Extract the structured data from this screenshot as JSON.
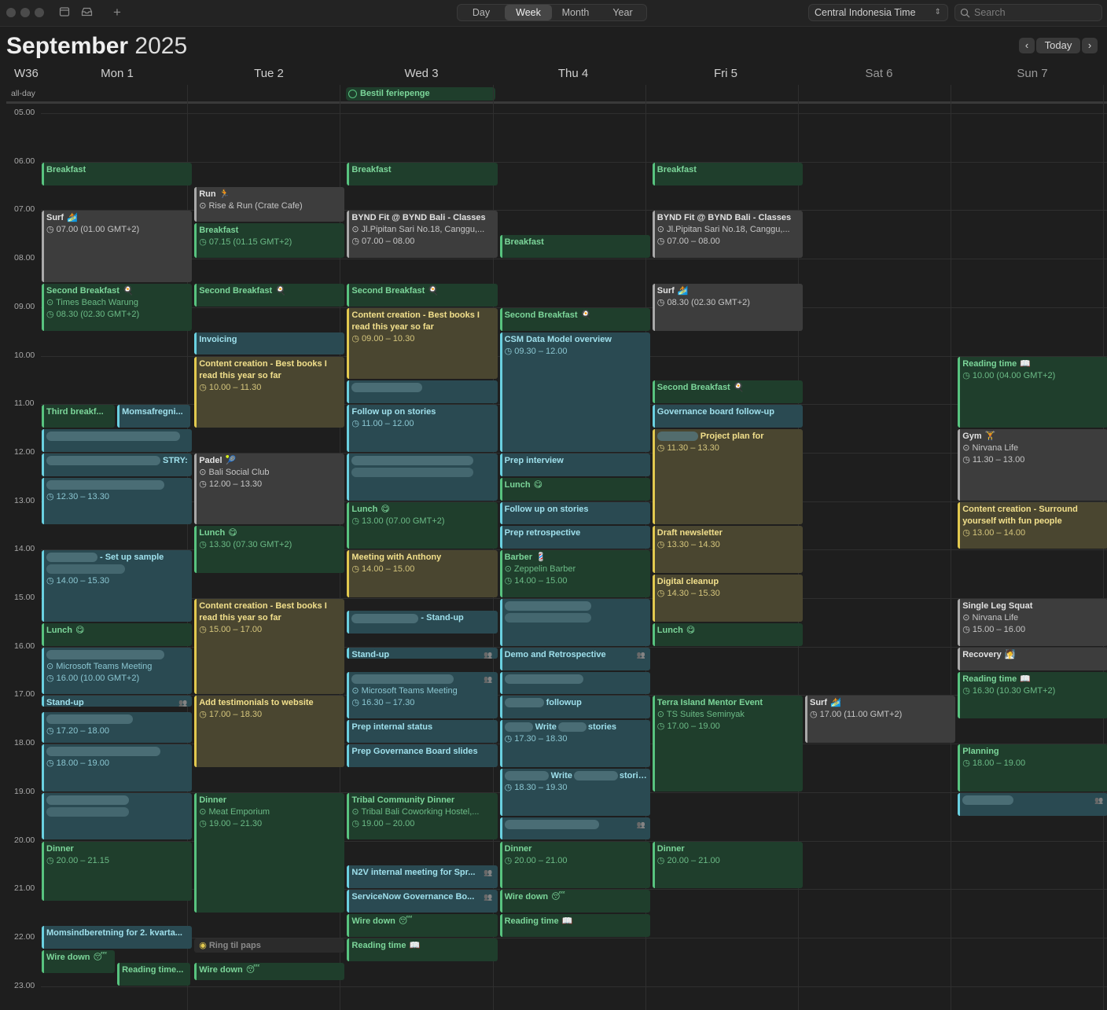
{
  "toolbar": {
    "views": [
      "Day",
      "Week",
      "Month",
      "Year"
    ],
    "active_view": "Week",
    "timezone": "Central Indonesia Time",
    "search_placeholder": "Search",
    "today_label": "Today"
  },
  "header": {
    "month": "September",
    "year": "2025",
    "week": "W36"
  },
  "days": [
    "Mon 1",
    "Tue 2",
    "Wed 3",
    "Thu 4",
    "Fri 5",
    "Sat 6",
    "Sun 7"
  ],
  "allday_label": "all-day",
  "allday_events": [
    {
      "day": 2,
      "title": "Bestil feriepenge"
    }
  ],
  "hours": [
    "05.00",
    "06.00",
    "07.00",
    "08.00",
    "09.00",
    "10.00",
    "11.00",
    "12.00",
    "13.00",
    "14.00",
    "15.00",
    "16.00",
    "17.00",
    "18.00",
    "19.00",
    "20.00",
    "21.00",
    "22.00",
    "23.00"
  ],
  "events": [
    {
      "day": 0,
      "start": 6.0,
      "end": 6.5,
      "color": "green",
      "title": "Breakfast"
    },
    {
      "day": 0,
      "start": 7.0,
      "end": 8.5,
      "color": "gray",
      "title": "Surf",
      "icon": "🏄",
      "lines": [
        "◷ 07.00 (01.00 GMT+2)"
      ]
    },
    {
      "day": 0,
      "start": 8.5,
      "end": 9.5,
      "color": "green",
      "title": "Second Breakfast",
      "icon": "🍳",
      "lines": [
        "⊙ Times Beach Warung",
        "◷ 08.30 (02.30 GMT+2)"
      ]
    },
    {
      "day": 0,
      "start": 11.0,
      "end": 11.5,
      "color": "green",
      "title": "Third breakf...",
      "sub": "L"
    },
    {
      "day": 0,
      "start": 11.0,
      "end": 11.5,
      "color": "teal",
      "title": "Momsafregni...",
      "sub": "R"
    },
    {
      "day": 0,
      "start": 11.5,
      "end": 12.0,
      "color": "teal",
      "title": "",
      "blur": [
        0,
        170
      ]
    },
    {
      "day": 0,
      "start": 12.0,
      "end": 12.5,
      "color": "teal",
      "title": "STRY:",
      "blur": [
        30,
        145
      ]
    },
    {
      "day": 0,
      "start": 12.5,
      "end": 13.5,
      "color": "teal",
      "title": "",
      "blur": [
        0,
        150
      ],
      "lines": [
        "◷ 12.30 – 13.30"
      ]
    },
    {
      "day": 0,
      "start": 14.0,
      "end": 15.5,
      "color": "teal",
      "title": "- Set up sample",
      "blur": [
        0,
        65
      ],
      "lines": [
        "",
        "◷ 14.00 – 15.30"
      ]
    },
    {
      "day": 0,
      "start": 15.5,
      "end": 16.0,
      "color": "green",
      "title": "Lunch",
      "icon": "😋"
    },
    {
      "day": 0,
      "start": 16.0,
      "end": 17.0,
      "color": "teal",
      "title": "",
      "blur": [
        0,
        150
      ],
      "lines": [
        "⊙ Microsoft Teams Meeting",
        "◷ 16.00 (10.00 GMT+2)"
      ]
    },
    {
      "day": 0,
      "start": 17.0,
      "end": 17.25,
      "color": "teal",
      "title": "Stand-up",
      "person": true
    },
    {
      "day": 0,
      "start": 17.33,
      "end": 18.0,
      "color": "teal",
      "title": "",
      "blur": [
        0,
        110
      ],
      "lines": [
        "◷ 17.20 – 18.00"
      ]
    },
    {
      "day": 0,
      "start": 18.0,
      "end": 19.0,
      "color": "teal",
      "title": "",
      "blur": [
        0,
        145
      ],
      "lines": [
        "◷ 18.00 – 19.00"
      ]
    },
    {
      "day": 0,
      "start": 19.0,
      "end": 20.0,
      "color": "teal",
      "title": "",
      "blur": [
        0,
        105
      ],
      "clip": true,
      "lines": [
        ""
      ]
    },
    {
      "day": 0,
      "start": 20.0,
      "end": 21.25,
      "color": "green",
      "title": "Dinner",
      "lines": [
        "◷ 20.00 – 21.15"
      ]
    },
    {
      "day": 0,
      "start": 21.75,
      "end": 22.25,
      "color": "teal",
      "title": "Momsindberetning for 2. kvarta..."
    },
    {
      "day": 0,
      "start": 22.25,
      "end": 22.75,
      "color": "green",
      "title": "Wire down",
      "icon": "😴",
      "sub": "L"
    },
    {
      "day": 0,
      "start": 22.5,
      "end": 23.0,
      "color": "green",
      "title": "Reading time...",
      "sub": "R"
    },
    {
      "day": 1,
      "start": 6.5,
      "end": 7.25,
      "color": "gray",
      "title": "Run",
      "icon": "🏃",
      "lines": [
        "⊙ Rise & Run (Crate Cafe)"
      ]
    },
    {
      "day": 1,
      "start": 7.25,
      "end": 8.0,
      "color": "green",
      "title": "Breakfast",
      "lines": [
        "◷ 07.15 (01.15 GMT+2)"
      ]
    },
    {
      "day": 1,
      "start": 8.5,
      "end": 9.0,
      "color": "green",
      "title": "Second Breakfast",
      "icon": "🍳"
    },
    {
      "day": 1,
      "start": 9.5,
      "end": 10.0,
      "color": "teal",
      "title": "Invoicing"
    },
    {
      "day": 1,
      "start": 10.0,
      "end": 11.5,
      "color": "yellow",
      "title": "Content creation - Best books I",
      "lines": [
        "read this year so far",
        "◷ 10.00 – 11.30"
      ],
      "bold2": true
    },
    {
      "day": 1,
      "start": 12.0,
      "end": 13.5,
      "color": "gray",
      "title": "Padel",
      "icon": "🎾",
      "lines": [
        "⊙ Bali Social Club",
        "◷ 12.00 – 13.30"
      ]
    },
    {
      "day": 1,
      "start": 13.5,
      "end": 14.5,
      "color": "green",
      "title": "Lunch",
      "icon": "😋",
      "lines": [
        "◷ 13.30 (07.30 GMT+2)"
      ]
    },
    {
      "day": 1,
      "start": 15.0,
      "end": 17.0,
      "color": "yellow",
      "title": "Content creation - Best books I",
      "lines": [
        "read this year so far",
        "◷ 15.00 – 17.00"
      ],
      "bold2": true
    },
    {
      "day": 1,
      "start": 17.0,
      "end": 18.5,
      "color": "yellow",
      "title": "Add testimonials to website",
      "lines": [
        "◷ 17.00 – 18.30"
      ]
    },
    {
      "day": 1,
      "start": 19.0,
      "end": 21.5,
      "color": "green",
      "title": "Dinner",
      "lines": [
        "⊙ Meat Emporium",
        "◷ 19.00 – 21.30"
      ]
    },
    {
      "day": 1,
      "start": 22.0,
      "end": 22.33,
      "color": "dim",
      "title": "Ring til paps",
      "circle": true
    },
    {
      "day": 1,
      "start": 22.5,
      "end": 22.9,
      "color": "green",
      "title": "Wire down",
      "icon": "😴"
    },
    {
      "day": 2,
      "start": 6.0,
      "end": 6.5,
      "color": "green",
      "title": "Breakfast"
    },
    {
      "day": 2,
      "start": 7.0,
      "end": 8.0,
      "color": "gray",
      "title": "BYND Fit @ BYND Bali - Classes",
      "lines": [
        "⊙ Jl.Pipitan Sari No.18, Canggu,...",
        "◷ 07.00 – 08.00"
      ]
    },
    {
      "day": 2,
      "start": 8.5,
      "end": 9.0,
      "color": "green",
      "title": "Second Breakfast",
      "icon": "🍳"
    },
    {
      "day": 2,
      "start": 9.0,
      "end": 10.5,
      "color": "yellow",
      "title": "Content creation - Best books I",
      "lines": [
        "read this year so far",
        "◷ 09.00 – 10.30"
      ],
      "bold2": true
    },
    {
      "day": 2,
      "start": 10.5,
      "end": 11.0,
      "color": "teal",
      "title": "",
      "blur": [
        0,
        90
      ]
    },
    {
      "day": 2,
      "start": 11.0,
      "end": 12.0,
      "color": "teal",
      "title": "Follow up on stories",
      "lines": [
        "◷ 11.00 – 12.00"
      ]
    },
    {
      "day": 2,
      "start": 12.0,
      "end": 13.0,
      "color": "teal",
      "title": "",
      "blur": [
        0,
        155
      ],
      "lines": [
        ""
      ]
    },
    {
      "day": 2,
      "start": 13.0,
      "end": 14.0,
      "color": "green",
      "title": "Lunch",
      "icon": "😋",
      "lines": [
        "◷ 13.00 (07.00 GMT+2)"
      ]
    },
    {
      "day": 2,
      "start": 14.0,
      "end": 15.0,
      "color": "yellow",
      "title": "Meeting with Anthony",
      "lines": [
        "◷ 14.00 – 15.00"
      ]
    },
    {
      "day": 2,
      "start": 15.25,
      "end": 15.75,
      "color": "teal",
      "title": "- Stand-up",
      "blur": [
        0,
        85
      ]
    },
    {
      "day": 2,
      "start": 16.0,
      "end": 16.25,
      "color": "teal",
      "title": "Stand-up",
      "person": true
    },
    {
      "day": 2,
      "start": 16.5,
      "end": 17.5,
      "color": "teal",
      "title": "",
      "blur": [
        0,
        130
      ],
      "person": true,
      "lines": [
        "⊙ Microsoft Teams Meeting",
        "◷ 16.30 – 17.30"
      ]
    },
    {
      "day": 2,
      "start": 17.5,
      "end": 18.0,
      "color": "teal",
      "title": "Prep internal status"
    },
    {
      "day": 2,
      "start": 18.0,
      "end": 18.5,
      "color": "teal",
      "title": "Prep Governance Board slides"
    },
    {
      "day": 2,
      "start": 19.0,
      "end": 20.0,
      "color": "green",
      "title": "Tribal Community Dinner",
      "lines": [
        "⊙ Tribal Bali Coworking Hostel,...",
        "◷ 19.00 – 20.00"
      ]
    },
    {
      "day": 2,
      "start": 20.5,
      "end": 21.0,
      "color": "teal",
      "title": "N2V internal meeting for Spr...",
      "person": true
    },
    {
      "day": 2,
      "start": 21.0,
      "end": 21.5,
      "color": "teal",
      "title": "ServiceNow Governance Bo...",
      "person": true
    },
    {
      "day": 2,
      "start": 21.5,
      "end": 22.0,
      "color": "green",
      "title": "Wire down",
      "icon": "😴"
    },
    {
      "day": 2,
      "start": 22.0,
      "end": 22.5,
      "color": "green",
      "title": "Reading time",
      "icon": "📖"
    },
    {
      "day": 3,
      "start": 7.5,
      "end": 8.0,
      "color": "green",
      "title": "Breakfast"
    },
    {
      "day": 3,
      "start": 9.0,
      "end": 9.5,
      "color": "green",
      "title": "Second Breakfast",
      "icon": "🍳"
    },
    {
      "day": 3,
      "start": 9.5,
      "end": 12.0,
      "color": "teal",
      "title": "CSM Data Model overview",
      "lines": [
        "◷ 09.30 – 12.00"
      ]
    },
    {
      "day": 3,
      "start": 12.0,
      "end": 12.5,
      "color": "teal",
      "title": "Prep interview"
    },
    {
      "day": 3,
      "start": 12.5,
      "end": 13.0,
      "color": "green",
      "title": "Lunch",
      "icon": "😋"
    },
    {
      "day": 3,
      "start": 13.0,
      "end": 13.5,
      "color": "teal",
      "title": "Follow up on stories"
    },
    {
      "day": 3,
      "start": 13.5,
      "end": 14.0,
      "color": "teal",
      "title": "Prep retrospective"
    },
    {
      "day": 3,
      "start": 14.0,
      "end": 15.0,
      "color": "green",
      "title": "Barber",
      "icon": "💈",
      "lines": [
        "⊙ Zeppelin Barber",
        "◷ 14.00 – 15.00"
      ]
    },
    {
      "day": 3,
      "start": 15.0,
      "end": 16.0,
      "color": "teal",
      "title": "",
      "blur": [
        0,
        110
      ],
      "lines": [
        ""
      ]
    },
    {
      "day": 3,
      "start": 16.0,
      "end": 16.5,
      "color": "teal",
      "title": "Demo and Retrospective",
      "person": true
    },
    {
      "day": 3,
      "start": 16.5,
      "end": 17.0,
      "color": "teal",
      "title": "",
      "blur": [
        0,
        100
      ]
    },
    {
      "day": 3,
      "start": 17.0,
      "end": 17.5,
      "color": "teal",
      "title": "followup",
      "blur": [
        0,
        50
      ]
    },
    {
      "day": 3,
      "start": 17.5,
      "end": 18.5,
      "color": "teal",
      "title": "Write",
      "tail": "stories",
      "blur": [
        0,
        36
      ],
      "lines": [
        "◷ 17.30 – 18.30"
      ]
    },
    {
      "day": 3,
      "start": 18.5,
      "end": 19.5,
      "color": "teal",
      "title": "Write",
      "tail": "stories",
      "blur": [
        0,
        56
      ],
      "lines": [
        "◷ 18.30 – 19.30"
      ]
    },
    {
      "day": 3,
      "start": 19.5,
      "end": 20.0,
      "color": "teal",
      "title": "",
      "blur": [
        0,
        120
      ],
      "person": true
    },
    {
      "day": 3,
      "start": 20.0,
      "end": 21.0,
      "color": "green",
      "title": "Dinner",
      "lines": [
        "◷ 20.00 – 21.00"
      ]
    },
    {
      "day": 3,
      "start": 21.0,
      "end": 21.5,
      "color": "green",
      "title": "Wire down",
      "icon": "😴"
    },
    {
      "day": 3,
      "start": 21.5,
      "end": 22.0,
      "color": "green",
      "title": "Reading time",
      "icon": "📖"
    },
    {
      "day": 4,
      "start": 6.0,
      "end": 6.5,
      "color": "green",
      "title": "Breakfast"
    },
    {
      "day": 4,
      "start": 7.0,
      "end": 8.0,
      "color": "gray",
      "title": "BYND Fit @ BYND Bali - Classes",
      "lines": [
        "⊙ Jl.Pipitan Sari No.18, Canggu,...",
        "◷ 07.00 – 08.00"
      ]
    },
    {
      "day": 4,
      "start": 8.5,
      "end": 9.5,
      "color": "gray",
      "title": "Surf",
      "icon": "🏄",
      "lines": [
        "◷ 08.30 (02.30 GMT+2)"
      ]
    },
    {
      "day": 4,
      "start": 10.5,
      "end": 11.0,
      "color": "green",
      "title": "Second Breakfast",
      "icon": "🍳"
    },
    {
      "day": 4,
      "start": 11.0,
      "end": 11.5,
      "color": "teal",
      "title": "Governance board follow-up"
    },
    {
      "day": 4,
      "start": 11.5,
      "end": 13.5,
      "color": "yellow",
      "title": "Project plan for",
      "blur": [
        0,
        52
      ],
      "lines": [
        "◷ 11.30 – 13.30"
      ]
    },
    {
      "day": 4,
      "start": 13.5,
      "end": 14.5,
      "color": "yellow",
      "title": "Draft newsletter",
      "lines": [
        "◷ 13.30 – 14.30"
      ]
    },
    {
      "day": 4,
      "start": 14.5,
      "end": 15.5,
      "color": "yellow",
      "title": "Digital cleanup",
      "lines": [
        "◷ 14.30 – 15.30"
      ]
    },
    {
      "day": 4,
      "start": 15.5,
      "end": 16.0,
      "color": "green",
      "title": "Lunch",
      "icon": "😋"
    },
    {
      "day": 4,
      "start": 17.0,
      "end": 19.0,
      "color": "green",
      "title": "Terra Island Mentor Event",
      "lines": [
        "⊙ TS Suites Seminyak",
        "◷ 17.00 – 19.00"
      ]
    },
    {
      "day": 4,
      "start": 20.0,
      "end": 21.0,
      "color": "green",
      "title": "Dinner",
      "lines": [
        "◷ 20.00 – 21.00"
      ]
    },
    {
      "day": 5,
      "start": 17.0,
      "end": 18.0,
      "color": "gray",
      "title": "Surf",
      "icon": "🏄",
      "lines": [
        "◷ 17.00 (11.00 GMT+2)"
      ]
    },
    {
      "day": 6,
      "start": 10.0,
      "end": 11.5,
      "color": "green",
      "title": "Reading time",
      "icon": "📖",
      "lines": [
        "◷ 10.00 (04.00 GMT+2)"
      ]
    },
    {
      "day": 6,
      "start": 11.5,
      "end": 13.0,
      "color": "gray",
      "title": "Gym",
      "icon": "🏋",
      "lines": [
        "⊙ Nirvana Life",
        "◷ 11.30 – 13.00"
      ]
    },
    {
      "day": 6,
      "start": 13.0,
      "end": 14.0,
      "color": "yellow",
      "title": "Content creation - Surround",
      "lines": [
        "yourself with fun people",
        "◷ 13.00 – 14.00"
      ],
      "bold2": true
    },
    {
      "day": 6,
      "start": 15.0,
      "end": 16.0,
      "color": "gray",
      "title": "Single Leg Squat",
      "lines": [
        "⊙ Nirvana Life",
        "◷ 15.00 – 16.00"
      ]
    },
    {
      "day": 6,
      "start": 16.0,
      "end": 16.5,
      "color": "gray",
      "title": "Recovery",
      "icon": "🧖"
    },
    {
      "day": 6,
      "start": 16.5,
      "end": 17.5,
      "color": "green",
      "title": "Reading time",
      "icon": "📖",
      "lines": [
        "◷ 16.30 (10.30 GMT+2)"
      ]
    },
    {
      "day": 6,
      "start": 18.0,
      "end": 19.0,
      "color": "green",
      "title": "Planning",
      "lines": [
        "◷ 18.00 – 19.00"
      ]
    },
    {
      "day": 6,
      "start": 19.0,
      "end": 19.5,
      "color": "teal",
      "title": "",
      "blur": [
        0,
        65
      ],
      "person": true
    }
  ]
}
